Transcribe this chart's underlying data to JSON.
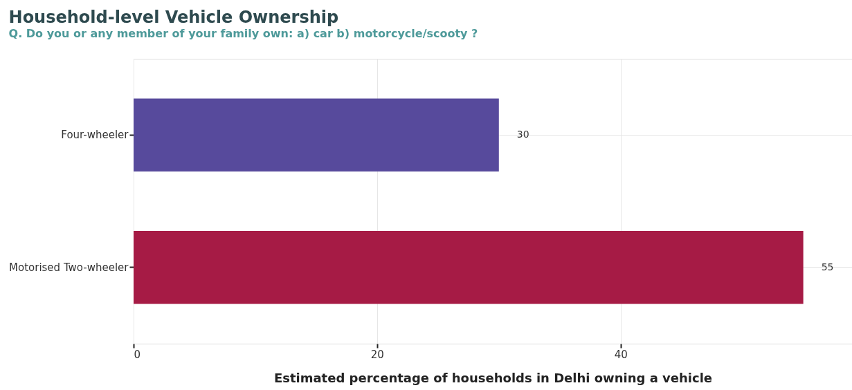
{
  "chart_data": {
    "type": "bar",
    "orientation": "horizontal",
    "title": "Household-level Vehicle Ownership",
    "subtitle": "Q. Do you or any member of your family own: a) car b) motorcycle/scooty ?",
    "categories": [
      "Four-wheeler",
      "Motorised Two-wheeler"
    ],
    "values": [
      30,
      55
    ],
    "colors": [
      "#574a9c",
      "#a61b45"
    ],
    "xlabel": "Estimated percentage of households in Delhi owning a vehicle",
    "xlim": [
      0,
      59
    ],
    "xticks": [
      0,
      20,
      40
    ],
    "grid": true,
    "data_labels": true
  }
}
